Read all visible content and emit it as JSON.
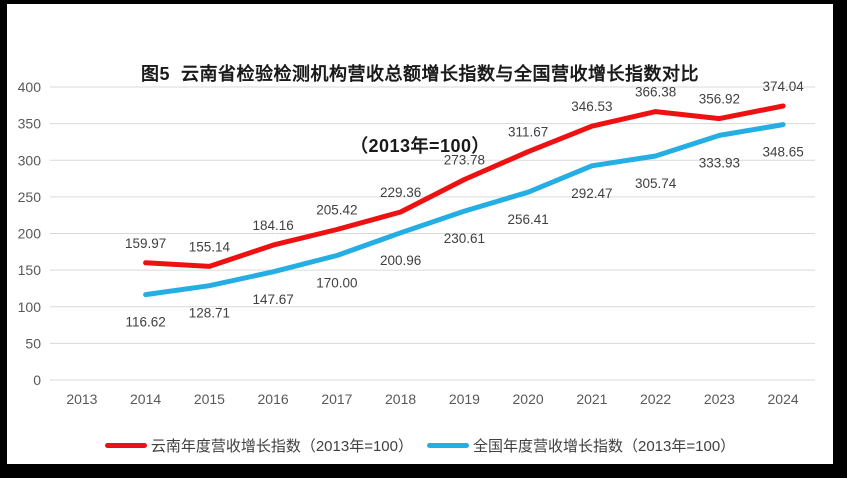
{
  "window": {
    "frame_color": "#000000",
    "card_color": "#ffffff"
  },
  "title": {
    "line1": "图5  云南省检验检测机构营收总额增长指数与全国营收增长指数对比",
    "line2": "（2013年=100）"
  },
  "chart_data": {
    "type": "line",
    "title": "图5 云南省检验检测机构营收总额增长指数与全国营收增长指数对比（2013年=100）",
    "categories": [
      "2013",
      "2014",
      "2015",
      "2016",
      "2017",
      "2018",
      "2019",
      "2020",
      "2021",
      "2022",
      "2023",
      "2024"
    ],
    "series": [
      {
        "name": "云南年度营收增长指数（2013年=100）",
        "color": "#ee1111",
        "label_position": "above",
        "values": [
          null,
          159.97,
          155.14,
          184.16,
          205.42,
          229.36,
          273.78,
          311.67,
          346.53,
          366.38,
          356.92,
          374.04
        ]
      },
      {
        "name": "全国年度营收增长指数（2013年=100）",
        "color": "#25aee3",
        "label_position": "below",
        "values": [
          null,
          116.62,
          128.71,
          147.67,
          170.0,
          200.96,
          230.61,
          256.41,
          292.47,
          305.74,
          333.93,
          348.65
        ]
      }
    ],
    "xlabel": "",
    "ylabel": "",
    "ylim": [
      0,
      400
    ],
    "ytick_step": 50,
    "grid": true,
    "gridline_color": "#d9d9d9",
    "axis_text_color": "#595959",
    "data_label_color": "#404040",
    "data_label_decimals": 2,
    "legend_position": "bottom"
  }
}
